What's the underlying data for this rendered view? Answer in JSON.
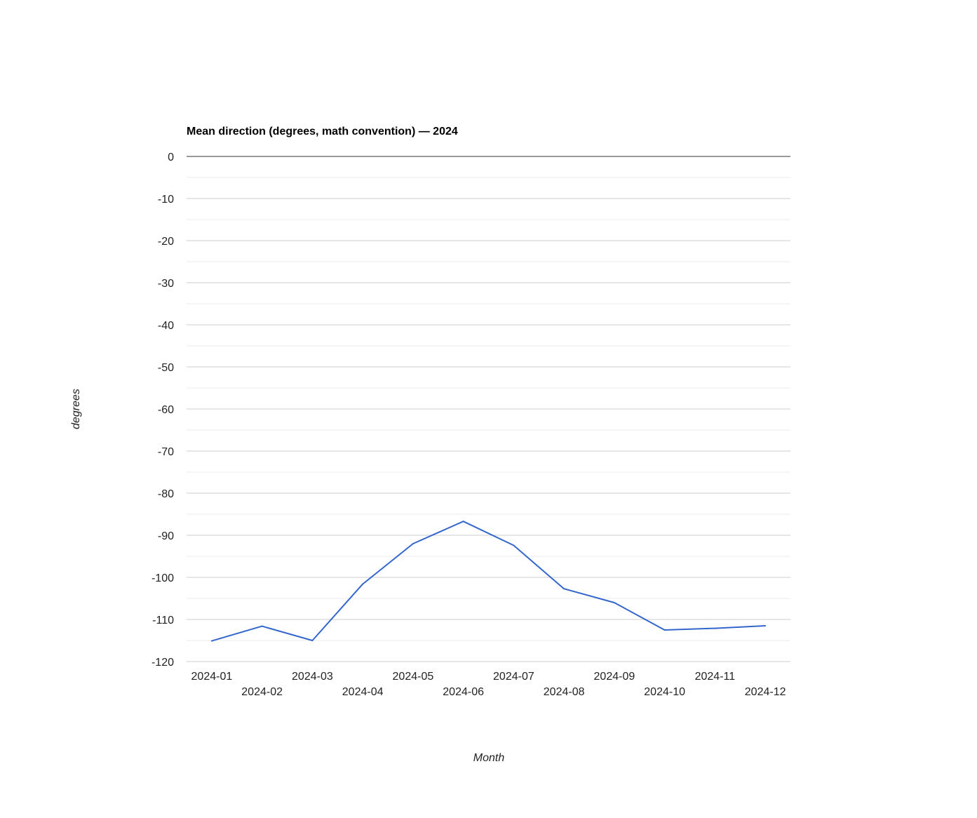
{
  "chart_data": {
    "type": "line",
    "title": "Mean direction (degrees, math convention) — 2024",
    "xlabel": "Month",
    "ylabel": "degrees",
    "categories": [
      "2024-01",
      "2024-02",
      "2024-03",
      "2024-04",
      "2024-05",
      "2024-06",
      "2024-07",
      "2024-08",
      "2024-09",
      "2024-10",
      "2024-11",
      "2024-12"
    ],
    "series": [
      {
        "values": [
          -115.1,
          -111.6,
          -115.0,
          -101.6,
          -92.0,
          -86.7,
          -92.4,
          -102.7,
          -106.0,
          -112.5,
          -112.1,
          -111.5
        ]
      }
    ],
    "ylim": [
      -120,
      0
    ],
    "yticks": [
      0,
      -10,
      -20,
      -30,
      -40,
      -50,
      -60,
      -70,
      -80,
      -90,
      -100,
      -110,
      -120
    ],
    "grid": true,
    "legend": "none",
    "colors": {
      "line": "#3366cc",
      "gridline": "#cccccc",
      "minor_gridline": "#ebebeb",
      "zero_line": "#333333"
    }
  }
}
